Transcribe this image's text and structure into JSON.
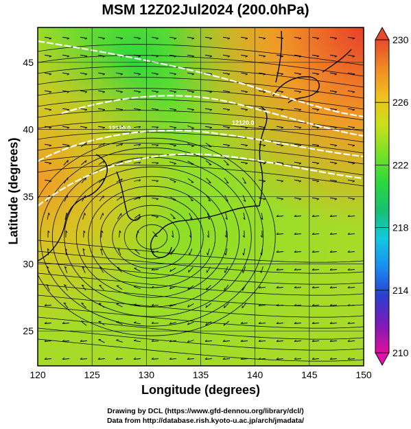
{
  "title": "MSM 12Z02Jul2024 (200.0hPa)",
  "axes": {
    "xlabel": "Longitude (degrees)",
    "ylabel": "Latitude  (degrees)",
    "xticks": [
      "120",
      "125",
      "130",
      "135",
      "140",
      "145",
      "150"
    ],
    "yticks": [
      "25",
      "30",
      "35",
      "40",
      "45"
    ],
    "xlim": [
      120,
      150
    ],
    "ylim": [
      22.4,
      47.6
    ]
  },
  "colorbar": {
    "labels": [
      "230",
      "226",
      "222",
      "218",
      "214",
      "210"
    ],
    "range": [
      210,
      230
    ],
    "colors": [
      "#e0109a",
      "#7d1ab8",
      "#2a3fd0",
      "#1a8cf0",
      "#12c8e0",
      "#18c070",
      "#2cd83c",
      "#7ae028",
      "#c8e01a",
      "#f0c020",
      "#f08a24",
      "#e84a2c"
    ]
  },
  "map_elements": {
    "contour_label": "12120.0"
  },
  "footer": {
    "line1": "Drawing by DCL (https://www.gfd-dennou.org/library/dcl/)",
    "line2": "Data from http://database.rish.kyoto-u.ac.jp/arch/jmadata/"
  }
}
